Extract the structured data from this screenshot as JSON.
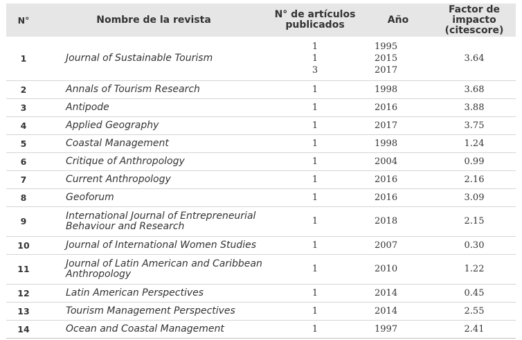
{
  "header": {
    "col_num": "N°",
    "col_name": "Nombre de la revista",
    "col_count_line1": "N° de artículos",
    "col_count_line2": "publicados",
    "col_year": "Año",
    "col_factor_line1": "Factor de impacto",
    "col_factor_line2": "(citescore)"
  },
  "rows": [
    {
      "num": "1",
      "name": "Journal of Sustainable Tourism",
      "counts": [
        "1",
        "1",
        "3"
      ],
      "years": [
        "1995",
        "2015",
        "2017"
      ],
      "factor": "3.64"
    },
    {
      "num": "2",
      "name": "Annals of Tourism Research",
      "counts": [
        "1"
      ],
      "years": [
        "1998"
      ],
      "factor": "3.68"
    },
    {
      "num": "3",
      "name": "Antipode",
      "counts": [
        "1"
      ],
      "years": [
        "2016"
      ],
      "factor": "3.88"
    },
    {
      "num": "4",
      "name": "Applied Geography",
      "counts": [
        "1"
      ],
      "years": [
        "2017"
      ],
      "factor": "3.75"
    },
    {
      "num": "5",
      "name": "Coastal Management",
      "counts": [
        "1"
      ],
      "years": [
        "1998"
      ],
      "factor": "1.24"
    },
    {
      "num": "6",
      "name": "Critique of Anthropology",
      "counts": [
        "1"
      ],
      "years": [
        "2004"
      ],
      "factor": "0.99"
    },
    {
      "num": "7",
      "name": "Current Anthropology",
      "counts": [
        "1"
      ],
      "years": [
        "2016"
      ],
      "factor": "2.16"
    },
    {
      "num": "8",
      "name": "Geoforum",
      "counts": [
        "1"
      ],
      "years": [
        "2016"
      ],
      "factor": "3.09"
    },
    {
      "num": "9",
      "name_lines": [
        "International Journal of Entrepreneurial",
        "Behaviour and Research"
      ],
      "counts": [
        "1"
      ],
      "years": [
        "2018"
      ],
      "factor": "2.15"
    },
    {
      "num": "10",
      "name": "Journal of International Women Studies",
      "counts": [
        "1"
      ],
      "years": [
        "2007"
      ],
      "factor": "0.30"
    },
    {
      "num": "11",
      "name_lines": [
        "Journal of Latin American and Caribbean",
        "Anthropology"
      ],
      "counts": [
        "1"
      ],
      "years": [
        "2010"
      ],
      "factor": "1.22"
    },
    {
      "num": "12",
      "name": "Latin American Perspectives",
      "counts": [
        "1"
      ],
      "years": [
        "2014"
      ],
      "factor": "0.45"
    },
    {
      "num": "13",
      "name": "Tourism Management Perspectives",
      "counts": [
        "1"
      ],
      "years": [
        "2014"
      ],
      "factor": "2.55"
    },
    {
      "num": "14",
      "name": "Ocean and Coastal Management",
      "counts": [
        "1"
      ],
      "years": [
        "1997"
      ],
      "factor": "2.41"
    }
  ]
}
